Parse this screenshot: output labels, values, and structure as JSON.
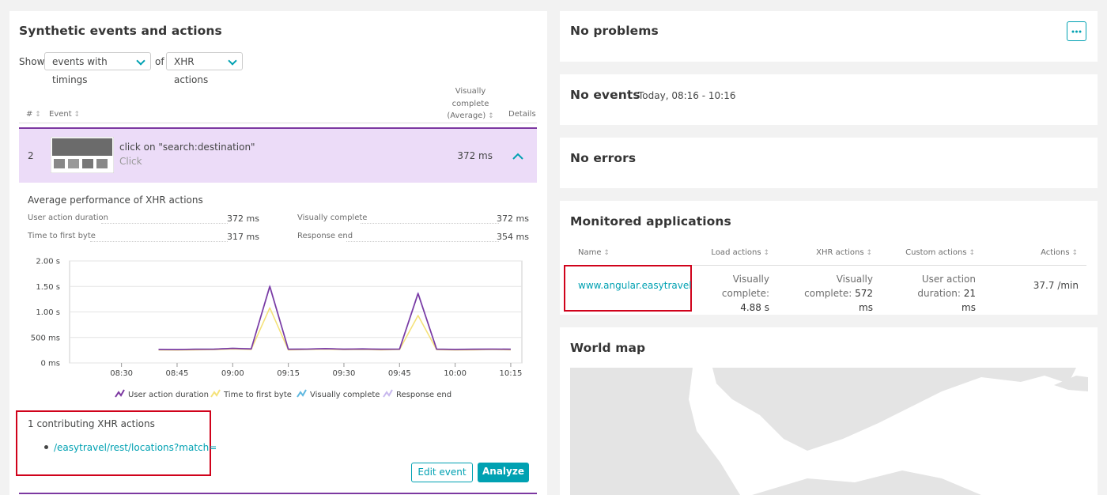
{
  "left": {
    "title": "Synthetic events and actions",
    "show_label": "Show",
    "filter_1": "events with timings",
    "of_label": "of",
    "filter_2": "XHR actions",
    "table": {
      "headers": [
        "#",
        "Event",
        "Visually complete (Average)",
        "Details"
      ],
      "row": {
        "index": "2",
        "event": "click on \"search:destination\"",
        "event_type": "Click",
        "visually_complete": "372 ms"
      }
    },
    "perf": {
      "title": "Average performance of XHR actions",
      "metrics": [
        {
          "label": "User action duration",
          "value": "372 ms"
        },
        {
          "label": "Visually complete",
          "value": "372 ms"
        },
        {
          "label": "Time to first byte",
          "value": "317 ms"
        },
        {
          "label": "Response end",
          "value": "354 ms"
        }
      ]
    },
    "contributing": {
      "title": "1 contributing XHR actions",
      "items": [
        "/easytravel/rest/locations?match="
      ]
    },
    "buttons": {
      "edit": "Edit event",
      "analyze": "Analyze"
    }
  },
  "chart_data": {
    "type": "line",
    "x": [
      "08:40",
      "08:45",
      "08:50",
      "08:55",
      "09:00",
      "09:05",
      "09:10",
      "09:15",
      "09:20",
      "09:25",
      "09:30",
      "09:35",
      "09:40",
      "09:45",
      "09:50",
      "09:55",
      "10:00",
      "10:05",
      "10:10",
      "10:15"
    ],
    "xlim": [
      "08:16",
      "10:18"
    ],
    "xticks": [
      "08:30",
      "08:45",
      "09:00",
      "09:15",
      "09:30",
      "09:45",
      "10:00",
      "10:15"
    ],
    "ylim": [
      0,
      2000
    ],
    "yticks": [
      {
        "value": 0,
        "label": "0 ms"
      },
      {
        "value": 500,
        "label": "500 ms"
      },
      {
        "value": 1000,
        "label": "1.00 s"
      },
      {
        "value": 1500,
        "label": "1.50 s"
      },
      {
        "value": 2000,
        "label": "2.00 s"
      }
    ],
    "grid": true,
    "series": [
      {
        "name": "User action duration",
        "color": "#7c38a1",
        "values": [
          265,
          262,
          268,
          270,
          285,
          275,
          1500,
          268,
          272,
          280,
          270,
          275,
          268,
          272,
          1360,
          270,
          265,
          268,
          272,
          268
        ]
      },
      {
        "name": "Time to first byte",
        "color": "#f5e27a",
        "values": [
          255,
          252,
          258,
          260,
          275,
          265,
          1080,
          258,
          262,
          270,
          260,
          265,
          258,
          262,
          930,
          260,
          255,
          258,
          262,
          258
        ]
      },
      {
        "name": "Visually complete",
        "color": "#5fb8e0",
        "values": [
          266,
          263,
          269,
          271,
          286,
          276,
          1500,
          269,
          273,
          281,
          271,
          276,
          269,
          273,
          1360,
          271,
          266,
          269,
          273,
          269
        ]
      },
      {
        "name": "Response end",
        "color": "#c8b8ee",
        "values": [
          268,
          265,
          270,
          272,
          288,
          278,
          1520,
          270,
          275,
          282,
          272,
          278,
          270,
          275,
          1380,
          272,
          268,
          270,
          275,
          270
        ]
      }
    ]
  },
  "right": {
    "problems": "No problems",
    "events": "No events",
    "events_range": "Today, 08:16 - 10:16",
    "errors": "No errors",
    "apps": {
      "title": "Monitored applications",
      "headers": [
        "Name",
        "Load actions",
        "XHR actions",
        "Custom actions",
        "Actions"
      ],
      "row": {
        "name": "www.angular.easytravel",
        "load_label": "Visually complete:",
        "load_value": "4.88 s",
        "xhr_label": "Visually complete:",
        "xhr_value": "572 ms",
        "custom_label": "User action duration:",
        "custom_value": "21 ms",
        "actions": "37.7 /min"
      }
    },
    "map_title": "World map"
  }
}
